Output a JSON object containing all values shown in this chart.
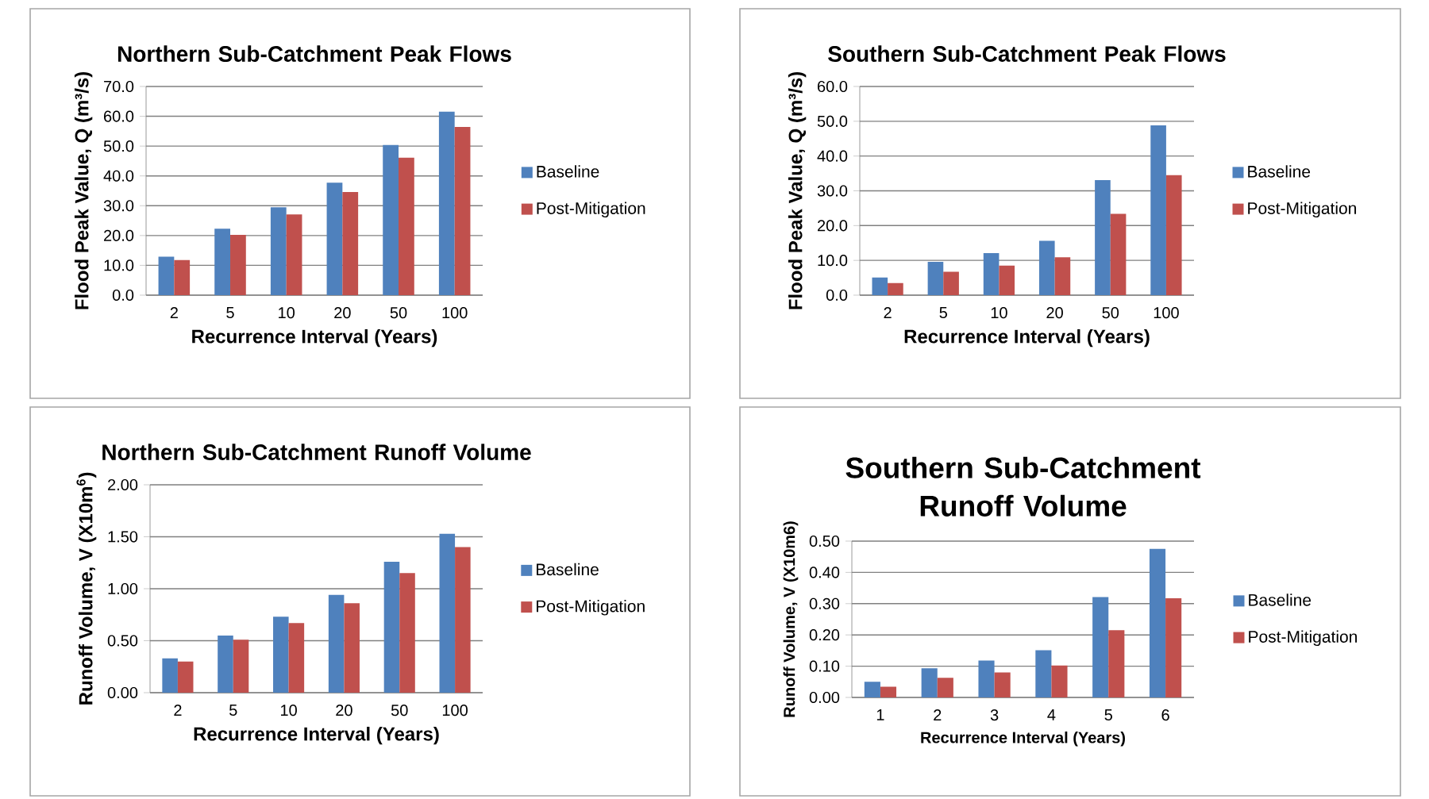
{
  "chart_data": [
    {
      "type": "bar",
      "title": "Northern Sub-Catchment Peak Flows",
      "xlabel": "Recurrence Interval (Years)",
      "ylabel": "Flood Peak Value, Q (m³/s)",
      "categories": [
        "2",
        "5",
        "10",
        "20",
        "50",
        "100"
      ],
      "series": [
        {
          "name": "Baseline",
          "color": "#4f81bd",
          "values": [
            12.9,
            22.3,
            29.5,
            37.7,
            50.4,
            61.6
          ]
        },
        {
          "name": "Post-Mitigation",
          "color": "#c0504d",
          "values": [
            11.8,
            20.2,
            27.1,
            34.6,
            46.1,
            56.4
          ]
        }
      ],
      "ylim": [
        0,
        70
      ],
      "yticks": [
        {
          "value": 0,
          "label": "0.0"
        },
        {
          "value": 10,
          "label": "10.0"
        },
        {
          "value": 20,
          "label": "20.0"
        },
        {
          "value": 30,
          "label": "30.0"
        },
        {
          "value": 40,
          "label": "40.0"
        },
        {
          "value": 50,
          "label": "50.0"
        },
        {
          "value": 60,
          "label": "60.0"
        },
        {
          "value": 70,
          "label": "70.0"
        }
      ],
      "grid": "y",
      "legend": "right"
    },
    {
      "type": "bar",
      "title": "Southern Sub-Catchment Peak Flows",
      "xlabel": "Recurrence Interval (Years)",
      "ylabel": "Flood Peak Value, Q (m³/s)",
      "categories": [
        "2",
        "5",
        "10",
        "20",
        "50",
        "100"
      ],
      "series": [
        {
          "name": "Baseline",
          "color": "#4f81bd",
          "values": [
            5.1,
            9.6,
            12.1,
            15.6,
            33.1,
            48.8
          ]
        },
        {
          "name": "Post-Mitigation",
          "color": "#c0504d",
          "values": [
            3.5,
            6.7,
            8.5,
            10.9,
            23.4,
            34.5
          ]
        }
      ],
      "ylim": [
        0,
        60
      ],
      "yticks": [
        {
          "value": 0,
          "label": "0.0"
        },
        {
          "value": 10,
          "label": "10.0"
        },
        {
          "value": 20,
          "label": "20.0"
        },
        {
          "value": 30,
          "label": "30.0"
        },
        {
          "value": 40,
          "label": "40.0"
        },
        {
          "value": 50,
          "label": "50.0"
        },
        {
          "value": 60,
          "label": "60.0"
        }
      ],
      "grid": "y",
      "legend": "right"
    },
    {
      "type": "bar",
      "title": "Northern Sub-Catchment Runoff Volume",
      "xlabel": "Recurrence Interval (Years)",
      "ylabel": "Runoff Volume, V (X10m$^{6}$)",
      "categories": [
        "2",
        "5",
        "10",
        "20",
        "50",
        "100"
      ],
      "series": [
        {
          "name": "Baseline",
          "color": "#4f81bd",
          "values": [
            0.33,
            0.55,
            0.73,
            0.94,
            1.26,
            1.53
          ]
        },
        {
          "name": "Post-Mitigation",
          "color": "#c0504d",
          "values": [
            0.3,
            0.51,
            0.67,
            0.86,
            1.15,
            1.4
          ]
        }
      ],
      "ylim": [
        0,
        2
      ],
      "yticks": [
        {
          "value": 0,
          "label": "0.00"
        },
        {
          "value": 0.5,
          "label": "0.50"
        },
        {
          "value": 1,
          "label": "1.00"
        },
        {
          "value": 1.5,
          "label": "1.50"
        },
        {
          "value": 2,
          "label": "2.00"
        }
      ],
      "grid": "y",
      "legend": "right"
    },
    {
      "type": "bar",
      "title": "Southern Sub-Catchment Runoff Volume",
      "xlabel": "Recurrence Interval (Years)",
      "ylabel": "Runoff Volume, V (X10m6)",
      "categories": [
        "1",
        "2",
        "3",
        "4",
        "5",
        "6"
      ],
      "series": [
        {
          "name": "Baseline",
          "color": "#4f81bd",
          "values": [
            0.05,
            0.093,
            0.118,
            0.151,
            0.321,
            0.475
          ]
        },
        {
          "name": "Post-Mitigation",
          "color": "#c0504d",
          "values": [
            0.034,
            0.063,
            0.08,
            0.102,
            0.215,
            0.317
          ]
        }
      ],
      "ylim": [
        0,
        0.5
      ],
      "yticks": [
        {
          "value": 0,
          "label": "0.00"
        },
        {
          "value": 0.1,
          "label": "0.10"
        },
        {
          "value": 0.2,
          "label": "0.20"
        },
        {
          "value": 0.3,
          "label": "0.30"
        },
        {
          "value": 0.4,
          "label": "0.40"
        },
        {
          "value": 0.5,
          "label": "0.50"
        }
      ],
      "grid": "y",
      "legend": "right"
    }
  ]
}
